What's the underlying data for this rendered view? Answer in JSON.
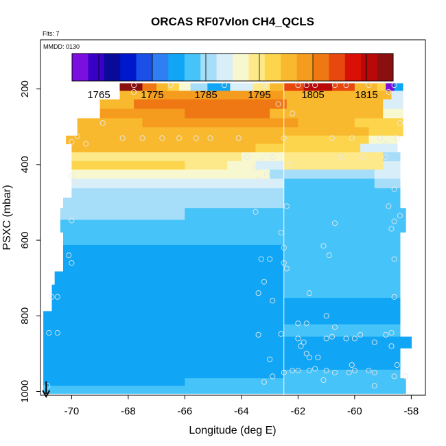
{
  "chart_data": {
    "type": "heatmap",
    "title": "ORCAS RF07vIon CH4_QCLS",
    "subtitle_flts": "Flts: 7",
    "date_label": "MMDD: 0130",
    "xlabel": "Longitude (deg E)",
    "ylabel": "PSXC (mbar)",
    "xlim": [
      -71.1,
      -57.5
    ],
    "ylim": [
      1010,
      70
    ],
    "x_ticks": [
      -70,
      -68,
      -66,
      -64,
      -62,
      -60,
      -58
    ],
    "y_ticks": [
      200,
      400,
      600,
      800,
      1000
    ],
    "colorbar": {
      "min": 1760,
      "max": 1820,
      "ticks": [
        1765,
        1775,
        1785,
        1795,
        1805,
        1815
      ],
      "colors": [
        "#7b0fe0",
        "#3a00c8",
        "#0a0a9a",
        "#0018cc",
        "#1a4fe8",
        "#2f7ff2",
        "#10a6f5",
        "#46c3f8",
        "#a6ddf8",
        "#d8eef8",
        "#f7f8d0",
        "#fde98a",
        "#fcd54c",
        "#f9b92e",
        "#f59c1e",
        "#f07814",
        "#e8480e",
        "#d81006",
        "#b80808",
        "#8a1010"
      ]
    },
    "vertical_line_lon": -62.5,
    "arrow_lon": -70.9,
    "rows": [
      {
        "p": 195,
        "segments": [
          [
            -68.3,
            -67.5,
            1817
          ],
          [
            -67.5,
            -67.0,
            1805
          ],
          [
            -67.0,
            -66.6,
            1799
          ],
          [
            -66.6,
            -66.2,
            1796
          ],
          [
            -66.2,
            -65.8,
            1791
          ],
          [
            -65.8,
            -65.2,
            1786
          ],
          [
            -65.2,
            -64.4,
            1780
          ],
          [
            -64.4,
            -63.6,
            1787
          ],
          [
            -63.6,
            -63.0,
            1793
          ],
          [
            -63.0,
            -62.5,
            1799
          ],
          [
            -62.5,
            -61.8,
            1810
          ],
          [
            -61.8,
            -60.8,
            1815
          ],
          [
            -60.8,
            -60.0,
            1810
          ],
          [
            -60.0,
            -59.2,
            1800
          ],
          [
            -59.2,
            -58.9,
            1797
          ],
          [
            -58.9,
            -58.6,
            1762
          ],
          [
            -58.6,
            -58.3,
            1780
          ]
        ]
      },
      {
        "p": 215,
        "segments": [
          [
            -68.3,
            -67.3,
            1800
          ],
          [
            -67.3,
            -62.5,
            1803
          ],
          [
            -62.5,
            -60.5,
            1800
          ],
          [
            -60.5,
            -58.7,
            1799
          ],
          [
            -58.7,
            -58.3,
            1787
          ]
        ]
      },
      {
        "p": 240,
        "segments": [
          [
            -69.0,
            -67.8,
            1801
          ],
          [
            -67.8,
            -62.6,
            1805
          ],
          [
            -62.6,
            -62.4,
            1805
          ],
          [
            -62.4,
            -60.0,
            1801
          ],
          [
            -60.0,
            -59.0,
            1799
          ],
          [
            -59.0,
            -58.3,
            1787
          ]
        ]
      },
      {
        "p": 265,
        "segments": [
          [
            -69.0,
            -66.0,
            1803
          ],
          [
            -66.0,
            -63.0,
            1806
          ],
          [
            -63.0,
            -60.0,
            1800
          ],
          [
            -60.0,
            -59.0,
            1799
          ],
          [
            -59.0,
            -58.3,
            1792
          ]
        ]
      },
      {
        "p": 290,
        "segments": [
          [
            -69.8,
            -67.5,
            1799
          ],
          [
            -67.5,
            -64.0,
            1803
          ],
          [
            -64.0,
            -62.0,
            1802
          ],
          [
            -62.0,
            -60.0,
            1800
          ],
          [
            -60.0,
            -58.3,
            1798
          ]
        ]
      },
      {
        "p": 312,
        "segments": [
          [
            -69.8,
            -66.0,
            1799
          ],
          [
            -66.0,
            -62.5,
            1801
          ],
          [
            -62.5,
            -59.5,
            1800
          ],
          [
            -59.5,
            -58.3,
            1797
          ]
        ]
      },
      {
        "p": 335,
        "segments": [
          [
            -70.2,
            -69.8,
            1800
          ],
          [
            -69.8,
            -65.0,
            1799
          ],
          [
            -65.0,
            -62.5,
            1800
          ],
          [
            -62.5,
            -59.5,
            1798
          ],
          [
            -59.5,
            -58.5,
            1792
          ]
        ]
      },
      {
        "p": 355,
        "segments": [
          [
            -70.0,
            -66.0,
            1801
          ],
          [
            -66.0,
            -63.5,
            1799
          ],
          [
            -63.5,
            -59.8,
            1797
          ],
          [
            -59.8,
            -58.5,
            1789
          ]
        ]
      },
      {
        "p": 380,
        "segments": [
          [
            -70.0,
            -64.0,
            1794
          ],
          [
            -64.0,
            -62.5,
            1792
          ],
          [
            -62.5,
            -59.0,
            1795
          ],
          [
            -59.0,
            -58.4,
            1786
          ]
        ]
      },
      {
        "p": 402,
        "segments": [
          [
            -70.0,
            -66.0,
            1797
          ],
          [
            -66.0,
            -64.5,
            1795
          ],
          [
            -64.5,
            -63.5,
            1791
          ],
          [
            -63.5,
            -62.5,
            1788
          ],
          [
            -62.5,
            -59.0,
            1794
          ],
          [
            -59.0,
            -58.4,
            1788
          ]
        ]
      },
      {
        "p": 425,
        "segments": [
          [
            -70.0,
            -65.0,
            1790
          ],
          [
            -65.0,
            -63.0,
            1790
          ],
          [
            -63.0,
            -62.5,
            1786
          ],
          [
            -62.5,
            -59.3,
            1784
          ],
          [
            -59.3,
            -58.4,
            1788
          ]
        ]
      },
      {
        "p": 450,
        "segments": [
          [
            -70.0,
            -66.0,
            1788
          ],
          [
            -66.0,
            -62.5,
            1787
          ],
          [
            -62.5,
            -59.3,
            1783
          ],
          [
            -59.3,
            -58.4,
            1786
          ]
        ]
      },
      {
        "p": 475,
        "segments": [
          [
            -70.0,
            -63.0,
            1786
          ],
          [
            -63.0,
            -62.5,
            1784
          ],
          [
            -62.5,
            -58.4,
            1783
          ]
        ]
      },
      {
        "p": 500,
        "segments": [
          [
            -70.3,
            -66.0,
            1785
          ],
          [
            -66.0,
            -62.5,
            1784
          ],
          [
            -62.5,
            -58.4,
            1783
          ]
        ]
      },
      {
        "p": 530,
        "segments": [
          [
            -70.4,
            -66.0,
            1784
          ],
          [
            -66.0,
            -62.5,
            1783
          ],
          [
            -62.5,
            -58.2,
            1783
          ]
        ]
      },
      {
        "p": 562,
        "segments": [
          [
            -70.4,
            -64.0,
            1782
          ],
          [
            -64.0,
            -62.5,
            1783
          ],
          [
            -62.5,
            -58.2,
            1782
          ]
        ]
      },
      {
        "p": 595,
        "segments": [
          [
            -70.3,
            -66.0,
            1781
          ],
          [
            -66.0,
            -62.5,
            1781
          ],
          [
            -62.5,
            -58.4,
            1782
          ]
        ]
      },
      {
        "p": 630,
        "segments": [
          [
            -70.3,
            -66.0,
            1780
          ],
          [
            -66.0,
            -62.5,
            1780
          ],
          [
            -62.5,
            -58.4,
            1781
          ]
        ]
      },
      {
        "p": 665,
        "segments": [
          [
            -70.3,
            -66.0,
            1779
          ],
          [
            -66.0,
            -62.5,
            1780
          ],
          [
            -62.5,
            -58.4,
            1781
          ]
        ]
      },
      {
        "p": 700,
        "segments": [
          [
            -70.6,
            -64.0,
            1780
          ],
          [
            -64.0,
            -62.5,
            1780
          ],
          [
            -62.5,
            -58.4,
            1781
          ]
        ]
      },
      {
        "p": 735,
        "segments": [
          [
            -70.7,
            -66.0,
            1780
          ],
          [
            -66.0,
            -62.5,
            1779
          ],
          [
            -62.5,
            -61.5,
            1783
          ],
          [
            -61.5,
            -58.4,
            1781
          ]
        ]
      },
      {
        "p": 770,
        "segments": [
          [
            -70.7,
            -66.0,
            1779
          ],
          [
            -66.0,
            -62.5,
            1780
          ],
          [
            -62.5,
            -58.4,
            1780
          ]
        ]
      },
      {
        "p": 805,
        "segments": [
          [
            -71.0,
            -66.0,
            1779
          ],
          [
            -66.0,
            -62.5,
            1779
          ],
          [
            -62.5,
            -58.4,
            1780
          ]
        ]
      },
      {
        "p": 840,
        "segments": [
          [
            -71.0,
            -66.0,
            1779
          ],
          [
            -66.0,
            -62.5,
            1780
          ],
          [
            -62.5,
            -58.4,
            1781
          ]
        ]
      },
      {
        "p": 870,
        "segments": [
          [
            -71.0,
            -66.0,
            1779
          ],
          [
            -66.0,
            -62.5,
            1779
          ],
          [
            -62.5,
            -58.0,
            1780
          ]
        ]
      },
      {
        "p": 900,
        "segments": [
          [
            -71.0,
            -66.0,
            1779
          ],
          [
            -66.0,
            -62.5,
            1779
          ],
          [
            -62.5,
            -58.4,
            1780
          ]
        ]
      },
      {
        "p": 930,
        "segments": [
          [
            -71.0,
            -66.0,
            1779
          ],
          [
            -66.0,
            -62.5,
            1779
          ],
          [
            -62.5,
            -58.4,
            1780
          ]
        ]
      },
      {
        "p": 955,
        "segments": [
          [
            -71.0,
            -66.0,
            1780
          ],
          [
            -66.0,
            -62.5,
            1780
          ],
          [
            -62.5,
            -58.4,
            1781
          ]
        ]
      },
      {
        "p": 975,
        "segments": [
          [
            -71.0,
            -66.0,
            1780
          ],
          [
            -66.0,
            -62.5,
            1781
          ],
          [
            -62.5,
            -58.2,
            1781
          ]
        ]
      },
      {
        "p": 995,
        "segments": [
          [
            -71.0,
            -62.5,
            1781
          ],
          [
            -62.5,
            -58.2,
            1781
          ]
        ]
      }
    ],
    "points": [
      [
        -67.8,
        190
      ],
      [
        -66.5,
        190
      ],
      [
        -64.6,
        190
      ],
      [
        -63.2,
        190
      ],
      [
        -62.0,
        190
      ],
      [
        -61.7,
        190
      ],
      [
        -61.4,
        190
      ],
      [
        -60.7,
        190
      ],
      [
        -60.3,
        190
      ],
      [
        -59.5,
        190
      ],
      [
        -58.6,
        190
      ],
      [
        -67.8,
        208
      ],
      [
        -58.8,
        208
      ],
      [
        -62.7,
        240
      ],
      [
        -58.4,
        240
      ],
      [
        -62.2,
        265
      ],
      [
        -68.9,
        290
      ],
      [
        -58.4,
        290
      ],
      [
        -69.8,
        325
      ],
      [
        -68.2,
        330
      ],
      [
        -67.5,
        330
      ],
      [
        -66.8,
        330
      ],
      [
        -66.2,
        330
      ],
      [
        -65.6,
        330
      ],
      [
        -65.1,
        330
      ],
      [
        -64.1,
        330
      ],
      [
        -62.5,
        330
      ],
      [
        -60.8,
        330
      ],
      [
        -60.1,
        330
      ],
      [
        -59.1,
        330
      ],
      [
        -58.5,
        330
      ],
      [
        -70.0,
        340
      ],
      [
        -69.5,
        345
      ],
      [
        -58.9,
        345
      ],
      [
        -63.8,
        380
      ],
      [
        -60.5,
        380
      ],
      [
        -59.7,
        380
      ],
      [
        -58.9,
        380
      ],
      [
        -63.3,
        390
      ],
      [
        -62.9,
        380
      ],
      [
        -62.3,
        400
      ],
      [
        -63.5,
        410
      ],
      [
        -63.1,
        425
      ],
      [
        -63.4,
        440
      ],
      [
        -63.0,
        445
      ],
      [
        -70.0,
        430
      ],
      [
        -69.9,
        445
      ],
      [
        -58.6,
        465
      ],
      [
        -62.4,
        510
      ],
      [
        -63.5,
        525
      ],
      [
        -58.8,
        510
      ],
      [
        -58.4,
        535
      ],
      [
        -70.0,
        548
      ],
      [
        -62.6,
        580
      ],
      [
        -60.7,
        555
      ],
      [
        -58.6,
        550
      ],
      [
        -58.7,
        570
      ],
      [
        -70.1,
        640
      ],
      [
        -70.0,
        660
      ],
      [
        -63.3,
        650
      ],
      [
        -63.0,
        650
      ],
      [
        -62.5,
        620
      ],
      [
        -62.5,
        660
      ],
      [
        -61.1,
        615
      ],
      [
        -60.9,
        640
      ],
      [
        -58.6,
        650
      ],
      [
        -62.4,
        675
      ],
      [
        -63.2,
        710
      ],
      [
        -63.4,
        740
      ],
      [
        -62.9,
        760
      ],
      [
        -61.6,
        740
      ],
      [
        -70.7,
        750
      ],
      [
        -70.5,
        750
      ],
      [
        -58.6,
        750
      ],
      [
        -63.4,
        850
      ],
      [
        -62.6,
        848
      ],
      [
        -62.0,
        820
      ],
      [
        -61.7,
        820
      ],
      [
        -61.0,
        800
      ],
      [
        -60.7,
        830
      ],
      [
        -60.3,
        860
      ],
      [
        -60.0,
        860
      ],
      [
        -59.8,
        850
      ],
      [
        -59.3,
        870
      ],
      [
        -58.9,
        850
      ],
      [
        -58.7,
        845
      ],
      [
        -62.0,
        860
      ],
      [
        -61.9,
        880
      ],
      [
        -61.8,
        870
      ],
      [
        -61.7,
        900
      ],
      [
        -61.6,
        910
      ],
      [
        -61.3,
        910
      ],
      [
        -61.0,
        860
      ],
      [
        -60.8,
        855
      ],
      [
        -60.1,
        930
      ],
      [
        -58.7,
        880
      ],
      [
        -58.5,
        930
      ],
      [
        -70.8,
        845
      ],
      [
        -70.5,
        845
      ],
      [
        -63.0,
        915
      ],
      [
        -62.2,
        945
      ],
      [
        -62.0,
        945
      ],
      [
        -61.6,
        945
      ],
      [
        -61.4,
        940
      ],
      [
        -61.0,
        945
      ],
      [
        -60.7,
        950
      ],
      [
        -60.2,
        950
      ],
      [
        -60.0,
        945
      ],
      [
        -59.5,
        945
      ],
      [
        -59.3,
        950
      ],
      [
        -59.3,
        985
      ],
      [
        -58.6,
        960
      ],
      [
        -58.2,
        960
      ],
      [
        -63.2,
        975
      ],
      [
        -62.9,
        960
      ],
      [
        -62.5,
        950
      ],
      [
        -61.1,
        970
      ],
      [
        -70.85,
        985
      ]
    ]
  }
}
